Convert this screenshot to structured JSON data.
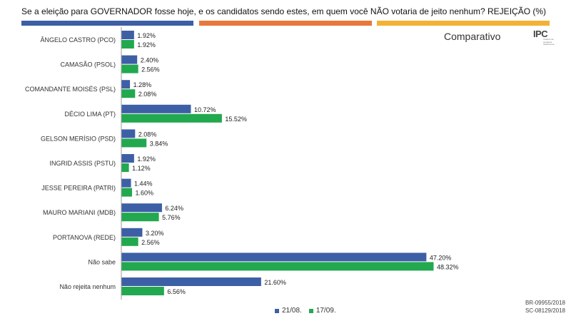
{
  "colors": {
    "series1": "#3d5fa6",
    "series2": "#22a84f",
    "stripe1": "#3d5fa6",
    "stripe2": "#e8783a",
    "stripe3": "#f2b234"
  },
  "header": {
    "title": "Se a eleição para GOVERNADOR fosse hoje, e os candidatos sendo estes, em quem você NÃO votaria de jeito nenhum? REJEIÇÃO  (%)",
    "subtitle": "Comparativo",
    "logo_text": "IPC",
    "logo_subtext": "Instituto de pesquisa catarinense"
  },
  "footer": {
    "codes": [
      "BR-09955/2018",
      "SC-08129/2018"
    ]
  },
  "chart_data": {
    "type": "bar",
    "orientation": "horizontal",
    "categories": [
      "ÂNGELO CASTRO (PCO)",
      "CAMASÃO (PSOL)",
      "COMANDANTE MOISÉS (PSL)",
      "DÉCIO LIMA (PT)",
      "GELSON MERÍSIO (PSD)",
      "INGRID ASSIS (PSTU)",
      "JESSE PEREIRA (PATRI)",
      "MAURO MARIANI (MDB)",
      "PORTANOVA (REDE)",
      "Não sabe",
      "Não rejeita nenhum"
    ],
    "series": [
      {
        "name": "21/08.",
        "values": [
          1.92,
          2.4,
          1.28,
          10.72,
          2.08,
          1.92,
          1.44,
          6.24,
          3.2,
          47.2,
          21.6
        ],
        "labels": [
          "1.92%",
          "2.40%",
          "1.28%",
          "10.72%",
          "2.08%",
          "1.92%",
          "1.44%",
          "6.24%",
          "3.20%",
          "47.20%",
          "21.60%"
        ]
      },
      {
        "name": "17/09.",
        "values": [
          1.92,
          2.56,
          2.08,
          15.52,
          3.84,
          1.12,
          1.6,
          5.76,
          2.56,
          48.32,
          6.56
        ],
        "labels": [
          "1.92%",
          "2.56%",
          "2.08%",
          "15.52%",
          "3.84%",
          "1.12%",
          "1.60%",
          "5.76%",
          "2.56%",
          "48.32%",
          "6.56%"
        ]
      }
    ],
    "xlim": [
      0,
      48.32
    ],
    "grid": false,
    "legend": "bottom"
  }
}
